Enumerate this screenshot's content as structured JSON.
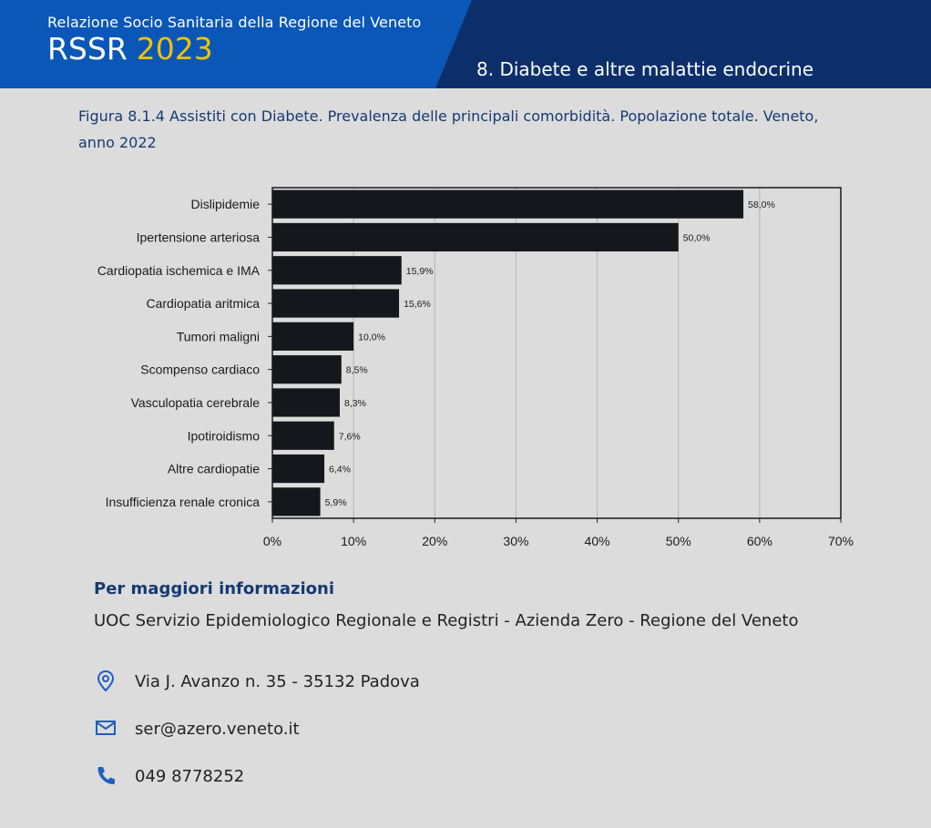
{
  "header": {
    "org": "Relazione Socio Sanitaria della Regione del Veneto",
    "brand": "RSSR",
    "year": "2023",
    "chapter": "8. Diabete e altre malattie endocrine"
  },
  "caption": "Figura 8.1.4 Assistiti con Diabete. Prevalenza delle principali comorbidità. Popolazione totale. Veneto, anno 2022",
  "chart_data": {
    "type": "bar",
    "orientation": "horizontal",
    "categories": [
      "Dislipidemie",
      "Ipertensione arteriosa",
      "Cardiopatia ischemica e IMA",
      "Cardiopatia aritmica",
      "Tumori maligni",
      "Scompenso cardiaco",
      "Vasculopatia cerebrale",
      "Ipotiroidismo",
      "Altre cardiopatie",
      "Insufficienza renale cronica"
    ],
    "values": [
      58.0,
      50.0,
      15.9,
      15.6,
      10.0,
      8.5,
      8.3,
      7.6,
      6.4,
      5.9
    ],
    "value_labels": [
      "58,0%",
      "50,0%",
      "15,9%",
      "15,6%",
      "10,0%",
      "8,5%",
      "8,3%",
      "7,6%",
      "6,4%",
      "5,9%"
    ],
    "xlim": [
      0,
      70
    ],
    "x_ticks": [
      0,
      10,
      20,
      30,
      40,
      50,
      60,
      70
    ],
    "x_tick_labels": [
      "0%",
      "10%",
      "20%",
      "30%",
      "40%",
      "50%",
      "60%",
      "70%"
    ],
    "grid": "vertical",
    "bar_color": "#15171d",
    "grid_color": "#b5b5b5"
  },
  "info": {
    "title": "Per maggiori informazioni",
    "org": "UOC Servizio Epidemiologico Regionale e Registri - Azienda Zero - Regione del Veneto",
    "address": "Via J. Avanzo n. 35 - 35132 Padova",
    "email": "ser@azero.veneto.it",
    "phone": "049 8778252"
  },
  "colors": {
    "header_blue": "#0a57b8",
    "header_dark": "#0c2f6c",
    "accent_yellow": "#f2c200",
    "title_blue": "#163a73",
    "icon_blue": "#1f5fc0"
  },
  "icons": [
    "location-pin-icon",
    "mail-icon",
    "phone-icon"
  ]
}
